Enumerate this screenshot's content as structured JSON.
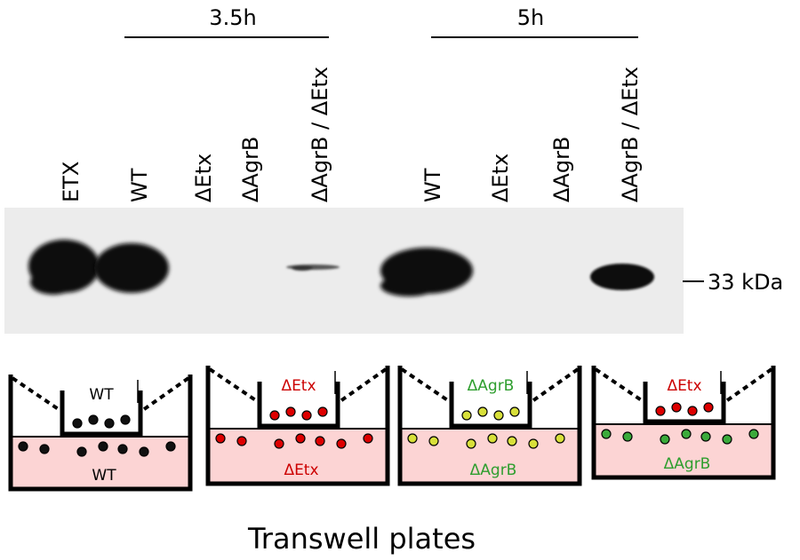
{
  "time_groups": [
    {
      "label": "3.5h"
    },
    {
      "label": "5h"
    }
  ],
  "lanes": [
    {
      "label": "ETX"
    },
    {
      "label": "WT"
    },
    {
      "label": "ΔEtx"
    },
    {
      "label": "ΔAgrB"
    },
    {
      "label": "ΔAgrB / ΔEtx"
    },
    {
      "label": "WT"
    },
    {
      "label": "ΔEtx"
    },
    {
      "label": "ΔAgrB"
    },
    {
      "label": "ΔAgrB / ΔEtx"
    }
  ],
  "marker": {
    "label": "33 kDa"
  },
  "bands": [
    {
      "lane": "ETX",
      "intensity": "strong"
    },
    {
      "lane": "WT 3.5h",
      "intensity": "strong"
    },
    {
      "lane": "ΔAgrB / ΔEtx 3.5h",
      "intensity": "faint"
    },
    {
      "lane": "WT 5h",
      "intensity": "strong"
    },
    {
      "lane": "ΔAgrB / ΔEtx 5h",
      "intensity": "medium"
    }
  ],
  "plates": [
    {
      "insert_label": "WT",
      "well_label": "WT",
      "insert_color": "#000000",
      "well_color": "#000000",
      "insert_dot_color": "#111111",
      "well_dot_color": "#111111"
    },
    {
      "insert_label": "ΔEtx",
      "well_label": "ΔEtx",
      "insert_color": "#cc0000",
      "well_color": "#cc0000",
      "insert_dot_color": "#dd0000",
      "well_dot_color": "#dd0000"
    },
    {
      "insert_label": "ΔAgrB",
      "well_label": "ΔAgrB",
      "insert_color": "#2e9e2e",
      "well_color": "#2e9e2e",
      "insert_dot_color": "#d8e03a",
      "well_dot_color": "#d8e03a"
    },
    {
      "insert_label": "ΔEtx",
      "well_label": "ΔAgrB",
      "insert_color": "#cc0000",
      "well_color": "#2e9e2e",
      "insert_dot_color": "#dd0000",
      "well_dot_color": "#3aaa3a"
    }
  ],
  "caption": "Transwell plates",
  "colors": {
    "media": "#fcd4d4",
    "blot_bg": "#ececec",
    "band": "#0a0a0a"
  }
}
